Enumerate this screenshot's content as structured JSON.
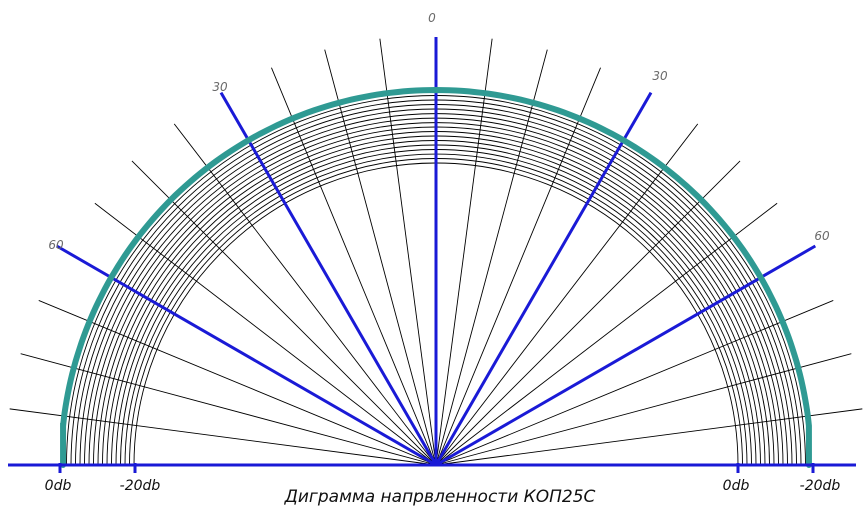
{
  "title": "Диграмма напрвленности КОП25С",
  "angle_labels": {
    "top": "0",
    "left_30": "30",
    "right_30": "30",
    "left_60": "60",
    "right_60": "60"
  },
  "db_labels": {
    "left_0db": "0db",
    "left_minus20db": "-20db",
    "right_0db": "0db",
    "right_minus20db": "-20db"
  },
  "colors": {
    "blue_axis": "#1a1ad6",
    "pattern_curve": "#2f9a93",
    "grid": "#000000",
    "text": "#111111",
    "angle_text": "#6a6a6a"
  },
  "chart_data": {
    "type": "polar",
    "angle_unit": "degrees",
    "angle_range": [
      -90,
      90
    ],
    "major_angles": [
      -60,
      -30,
      0,
      30,
      60
    ],
    "minor_angle_step": 7.5,
    "radial_scale_db": [
      0,
      -20
    ],
    "series": [
      {
        "angles": [
          -84,
          -60,
          -30,
          0,
          30,
          60,
          84
        ],
        "level_db": [
          0,
          0,
          0,
          0,
          0,
          0,
          0
        ]
      }
    ]
  }
}
